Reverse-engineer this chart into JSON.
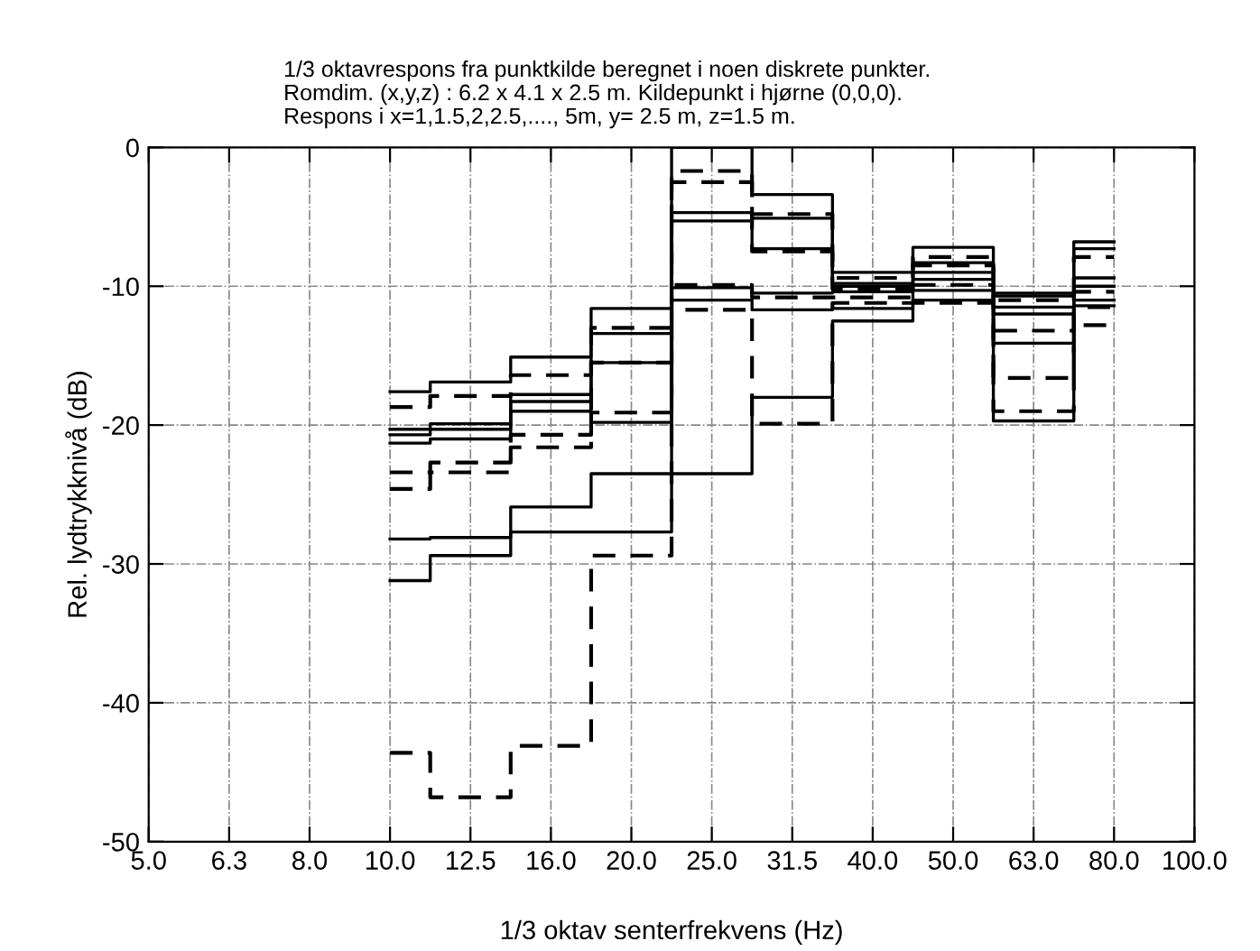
{
  "chart_data": {
    "type": "step",
    "title": "1/3 oktavrespons fra punktkilde beregnet i noen diskrete punkter.\nRomdim. (x,y,z) : 6.2 x 4.1 x 2.5 m. Kildepunkt i hjørne (0,0,0).\nRespons i x=1,1.5,2,2.5,...., 5m, y= 2.5 m, z=1.5 m.",
    "xlabel": "1/3 oktav senterfrekvens (Hz)",
    "ylabel": "Rel. lydtrykknivå (dB)",
    "categories": [
      "5.0",
      "6.3",
      "8.0",
      "10.0",
      "12.5",
      "16.0",
      "20.0",
      "25.0",
      "31.5",
      "40.0",
      "50.0",
      "63.0",
      "80.0",
      "100.0"
    ],
    "ylim": [
      -50,
      0
    ],
    "yticks": [
      -50,
      -40,
      -30,
      -20,
      -10,
      0
    ],
    "grid": true,
    "legend": false,
    "series": [
      {
        "color": "#000000",
        "line_style": "solid",
        "values": [
          null,
          null,
          null,
          -17.6,
          -16.9,
          -15.1,
          -11.6,
          0,
          -3.4,
          -9.0,
          -7.2,
          -10.5,
          -6.8,
          null
        ]
      },
      {
        "color": "#000000",
        "line_style": "solid",
        "values": [
          null,
          null,
          null,
          -20.3,
          -19.9,
          -17.8,
          -13.4,
          -4.7,
          -5.1,
          -9.8,
          -8.3,
          -10.7,
          -7.3,
          null
        ]
      },
      {
        "color": "#000000",
        "line_style": "solid",
        "values": [
          null,
          null,
          null,
          -20.7,
          -20.3,
          -18.3,
          -15.5,
          -5.3,
          -7.3,
          -10.0,
          -9.0,
          -11.5,
          -9.4,
          null
        ]
      },
      {
        "color": "#000000",
        "line_style": "solid",
        "values": [
          null,
          null,
          null,
          -21.3,
          -21.0,
          -19.0,
          -19.8,
          -10.1,
          -10.5,
          -10.4,
          -9.5,
          -12.0,
          -10.0,
          null
        ]
      },
      {
        "color": "#000000",
        "line_style": "solid",
        "values": [
          null,
          null,
          null,
          -28.2,
          -28.1,
          -25.9,
          -23.5,
          -11.0,
          -11.7,
          -11.6,
          -10.3,
          -14.1,
          -11.0,
          null
        ]
      },
      {
        "color": "#000000",
        "line_style": "solid",
        "values": [
          null,
          null,
          null,
          -31.2,
          -29.4,
          -27.7,
          -27.7,
          -23.5,
          -18.0,
          -12.5,
          -11.0,
          -19.7,
          -11.4,
          null
        ]
      },
      {
        "color": "#000000",
        "line_style": "dashed",
        "values": [
          null,
          null,
          null,
          -18.7,
          -17.9,
          -16.4,
          -13.0,
          -1.7,
          -4.8,
          -9.4,
          -7.9,
          -11.0,
          -7.9,
          null
        ]
      },
      {
        "color": "#000000",
        "line_style": "dashed",
        "values": [
          null,
          null,
          null,
          -23.4,
          -22.7,
          -20.7,
          -15.5,
          -2.5,
          -7.5,
          -10.2,
          -8.5,
          -13.2,
          -10.4,
          null
        ]
      },
      {
        "color": "#000000",
        "line_style": "dashed",
        "values": [
          null,
          null,
          null,
          -24.6,
          -23.4,
          -21.6,
          -19.1,
          -9.9,
          -10.8,
          -10.8,
          -9.9,
          -16.6,
          -11.5,
          null
        ]
      },
      {
        "color": "#000000",
        "line_style": "dashed",
        "values": [
          null,
          null,
          null,
          -43.6,
          -46.8,
          -43.1,
          -29.4,
          -11.7,
          -19.9,
          -11.2,
          -11.2,
          -19.0,
          -12.8,
          null
        ]
      }
    ]
  }
}
